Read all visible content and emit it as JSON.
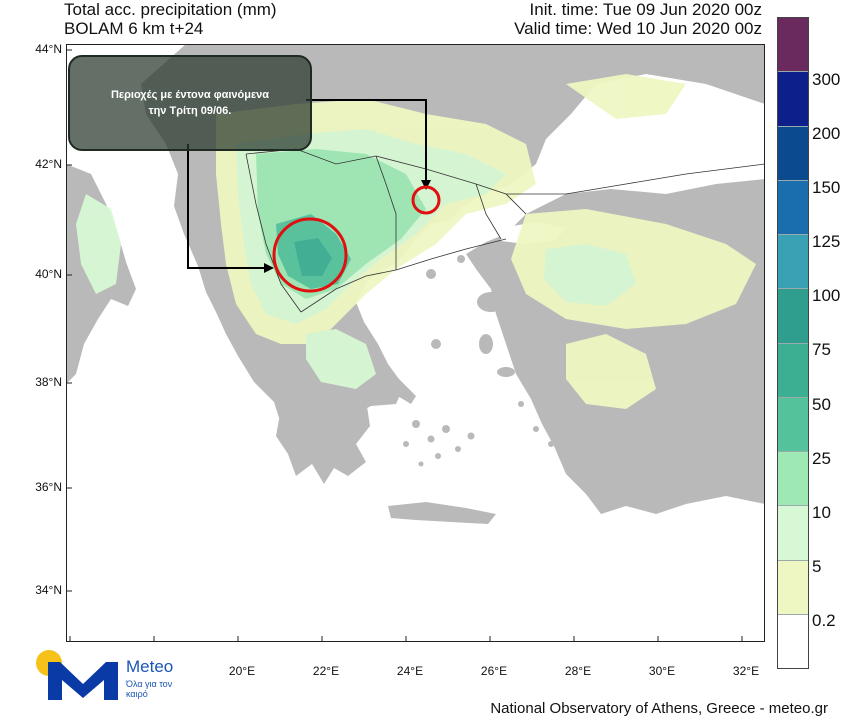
{
  "header": {
    "title_line1": "Total acc. precipitation (mm)",
    "title_line2": "BOLAM 6 km t+24",
    "init_time": "Init. time: Tue 09 Jun 2020 00z",
    "valid_time": "Valid time: Wed 10 Jun 2020 00z"
  },
  "axes": {
    "lat_labels": [
      "44°N",
      "42°N",
      "40°N",
      "38°N",
      "36°N",
      "34°N"
    ],
    "lon_labels": [
      "20°E",
      "22°E",
      "24°E",
      "26°E",
      "28°E",
      "30°E",
      "32°E"
    ]
  },
  "colorbar": {
    "labels": [
      "300",
      "200",
      "150",
      "125",
      "100",
      "75",
      "50",
      "25",
      "10",
      "5",
      "0.2"
    ],
    "colors": [
      "#6a2a5e",
      "#0c1f8a",
      "#0b4a8f",
      "#1a6eae",
      "#3aa0b4",
      "#2f9e8e",
      "#3cae92",
      "#54c39c",
      "#9de8b3",
      "#d7f8d4",
      "#eef7c2",
      "#ffffff"
    ]
  },
  "annotation": {
    "line1": "Περιοχές με έντονα φαινόμενα",
    "line2": "την Τρίτη 09/06."
  },
  "map_colors": {
    "land": "#b9b9b9",
    "sea": "#ffffff",
    "highlight": "#e01010"
  },
  "logo": {
    "name": "Meteo",
    "tagline": "Όλα για τον καιρό"
  },
  "footer": "National Observatory of Athens, Greece - meteo.gr"
}
